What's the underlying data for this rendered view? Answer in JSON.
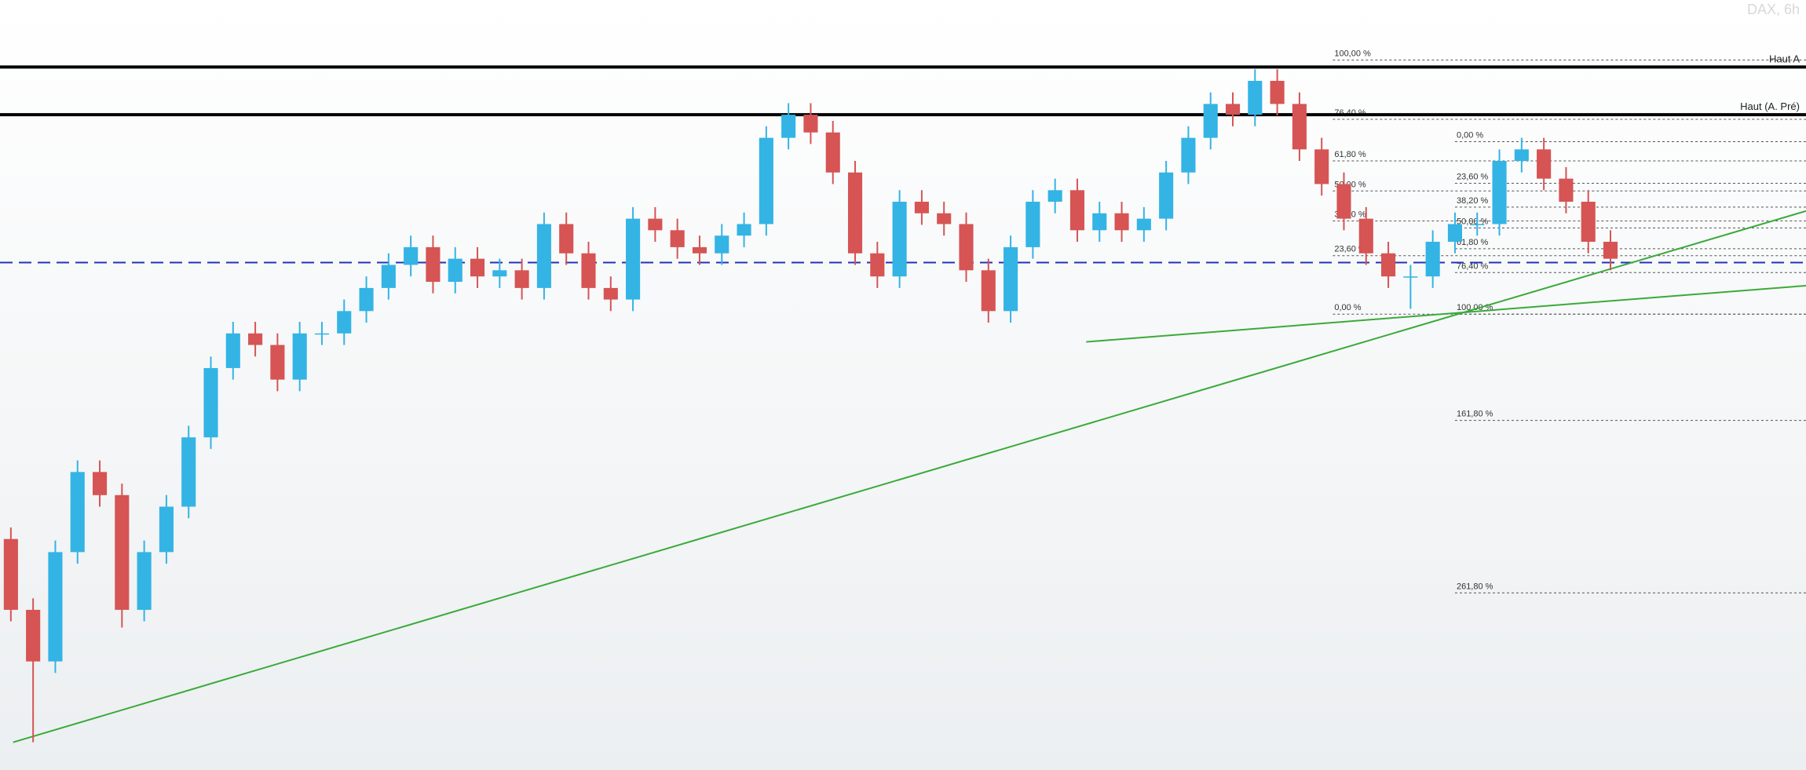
{
  "chart_data": {
    "type": "candlestick",
    "title": "DAX, 6h",
    "open": [
      30,
      20.8,
      14.1,
      28.3,
      38.7,
      35.7,
      20.8,
      28.3,
      34.2,
      43.2,
      52.2,
      56.7,
      55.2,
      50.7,
      56.7,
      56.7,
      59.6,
      62.6,
      65.6,
      67.9,
      63.4,
      66.4,
      64.1,
      64.9,
      62.6,
      70.9,
      67.1,
      62.6,
      61.1,
      71.6,
      70.1,
      67.9,
      67.1,
      69.4,
      70.9,
      82.1,
      85.1,
      82.8,
      77.6,
      67.1,
      64.1,
      73.8,
      72.3,
      70.9,
      64.9,
      59.6,
      67.9,
      73.8,
      75.3,
      70.1,
      72.3,
      70.1,
      71.6,
      77.6,
      82.1,
      86.5,
      85.1,
      89.5,
      86.5,
      80.6,
      76.1,
      71.6,
      67.1,
      64.1,
      64.1,
      68.6,
      70.9,
      70.9,
      79.1,
      80.6,
      76.8,
      73.8,
      68.6
    ],
    "high": [
      31.5,
      22.3,
      29.8,
      40.2,
      40.2,
      37.2,
      29.8,
      35.7,
      44.7,
      53.7,
      58.2,
      58.2,
      56.7,
      58.2,
      58.2,
      61.1,
      64.1,
      67.1,
      69.4,
      69.4,
      67.9,
      67.9,
      66.4,
      66.4,
      72.4,
      72.4,
      68.6,
      64.1,
      73.1,
      73.1,
      71.6,
      69.4,
      70.9,
      72.4,
      83.6,
      86.6,
      86.6,
      84.3,
      79.1,
      68.6,
      75.3,
      75.3,
      73.8,
      72.4,
      66.4,
      69.4,
      75.3,
      76.8,
      76.8,
      73.8,
      73.8,
      73.1,
      79.1,
      83.6,
      88,
      88,
      91,
      91,
      88,
      82.1,
      77.6,
      73.1,
      68.6,
      65.6,
      70.1,
      72.4,
      72.4,
      80.6,
      82.1,
      82.1,
      78.3,
      75.3,
      70.1
    ],
    "low": [
      19.3,
      3.6,
      12.6,
      26.8,
      34.2,
      18.5,
      19.3,
      26.8,
      32.7,
      41.7,
      50.7,
      53.7,
      49.2,
      49.2,
      55.2,
      55.2,
      58.1,
      61.1,
      64.1,
      61.9,
      61.9,
      62.6,
      62.6,
      61.1,
      61.1,
      65.6,
      61.1,
      59.6,
      59.6,
      68.6,
      66.4,
      65.6,
      65.6,
      67.9,
      69.4,
      80.6,
      81.3,
      76.1,
      65.6,
      62.6,
      62.6,
      70.8,
      69.4,
      63.4,
      58.1,
      58.1,
      66.4,
      72.3,
      68.6,
      68.6,
      68.6,
      68.6,
      70.1,
      76.1,
      80.6,
      83.6,
      83.6,
      85,
      79.1,
      74.6,
      70.1,
      65.6,
      62.6,
      59.9,
      62.6,
      67.1,
      69.4,
      69.4,
      77.6,
      75.3,
      72.3,
      67.1,
      64.9
    ],
    "close": [
      20.8,
      14.1,
      28.3,
      38.7,
      35.7,
      20.8,
      28.3,
      34.2,
      43.2,
      52.2,
      56.7,
      55.2,
      50.7,
      56.7,
      56.7,
      59.6,
      62.6,
      65.6,
      67.9,
      63.4,
      66.4,
      64.1,
      64.9,
      62.6,
      70.9,
      67.1,
      62.6,
      61.1,
      71.6,
      70.1,
      67.9,
      67.1,
      69.4,
      70.9,
      82.1,
      85.1,
      82.8,
      77.6,
      67.1,
      64.1,
      73.8,
      72.3,
      70.9,
      64.9,
      59.6,
      67.9,
      73.8,
      75.3,
      70.1,
      72.3,
      70.1,
      71.6,
      77.6,
      82.1,
      86.5,
      85.1,
      89.5,
      86.5,
      80.6,
      76.1,
      71.6,
      67.1,
      64.1,
      64.1,
      68.6,
      70.9,
      70.9,
      79.1,
      80.6,
      76.8,
      73.8,
      68.6,
      66.4
    ],
    "up_color": "#33b4e4",
    "down_color": "#d65454",
    "xlim": [
      -0.49,
      80.8
    ],
    "ylim": [
      0,
      100
    ],
    "levels": [
      {
        "label": "Haut A",
        "value": 91.3,
        "color": "#000000"
      },
      {
        "label": "Haut (A. Pré)",
        "value": 85.1,
        "color": "#000000"
      }
    ],
    "support": {
      "value": 65.9,
      "color": "#2233bb"
    },
    "fibonacci": [
      {
        "start": 59.5,
        "levels": [
          {
            "label": "100,00 %",
            "value": 92.2
          },
          {
            "label": "76,40 %",
            "value": 84.5
          },
          {
            "label": "61,80 %",
            "value": 79.1
          },
          {
            "label": "50,00 %",
            "value": 75.2
          },
          {
            "label": "38,20 %",
            "value": 71.3
          },
          {
            "label": "23,60 %",
            "value": 66.8
          },
          {
            "label": "0,00 %",
            "value": 59.2
          }
        ]
      },
      {
        "start": 65.0,
        "levels": [
          {
            "label": "0,00 %",
            "value": 81.6
          },
          {
            "label": "23,60 %",
            "value": 76.2
          },
          {
            "label": "38,20 %",
            "value": 73.1
          },
          {
            "label": "50,00 %",
            "value": 70.4
          },
          {
            "label": "61,80 %",
            "value": 67.7
          },
          {
            "label": "76,40 %",
            "value": 64.6
          },
          {
            "label": "100,00 %",
            "value": 59.2
          },
          {
            "label": "161,80 %",
            "value": 45.4
          },
          {
            "label": "261,80 %",
            "value": 23.0
          }
        ]
      }
    ],
    "trendlines": [
      {
        "color": "#3aaa3a",
        "points": [
          [
            0.1,
            3.6
          ],
          [
            80.8,
            72.6
          ]
        ]
      },
      {
        "color": "#3aaa3a",
        "points": [
          [
            48.4,
            55.6
          ],
          [
            80.8,
            62.9
          ]
        ]
      }
    ]
  }
}
